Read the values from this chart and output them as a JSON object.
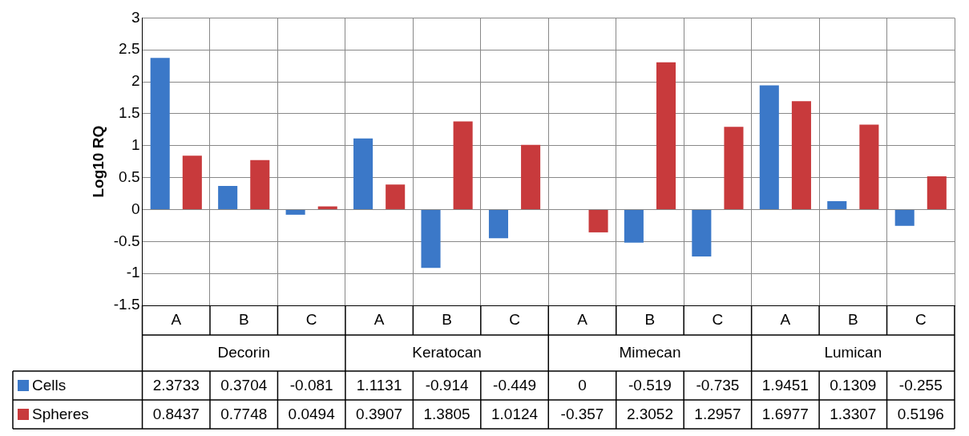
{
  "chart_data": {
    "type": "bar",
    "ylabel": "Log10 RQ",
    "categories": [
      "A",
      "B",
      "C",
      "A",
      "B",
      "C",
      "A",
      "B",
      "C",
      "A",
      "B",
      "C"
    ],
    "annotations": [
      "Decorin",
      "Keratocan",
      "Mimecan",
      "Lumican"
    ],
    "series": [
      {
        "name": "Cells",
        "color": "#3b78c8",
        "values": [
          2.3733,
          0.3704,
          -0.081,
          1.1131,
          -0.914,
          -0.449,
          0,
          -0.519,
          -0.735,
          1.9451,
          0.1309,
          -0.255
        ]
      },
      {
        "name": "Spheres",
        "color": "#c83a3c",
        "values": [
          0.8437,
          0.7748,
          0.0494,
          0.3907,
          1.3805,
          1.0124,
          -0.357,
          2.3052,
          1.2957,
          1.6977,
          1.3307,
          0.5196
        ]
      }
    ],
    "ylim": [
      -1.5,
      3
    ],
    "yticks": [
      -1.5,
      -1,
      -0.5,
      0,
      0.5,
      1,
      1.5,
      2,
      2.5,
      3
    ],
    "grid": true,
    "legend": "bottom",
    "data_labels": true
  }
}
